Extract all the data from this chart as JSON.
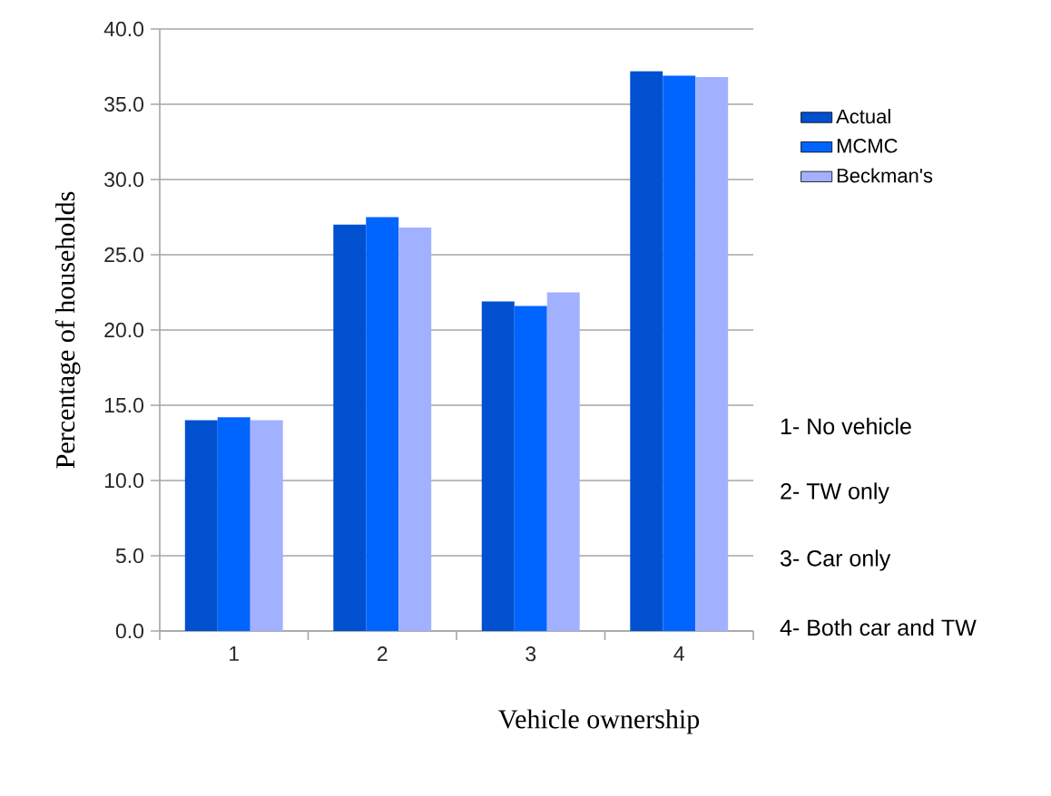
{
  "chart_data": {
    "type": "bar",
    "xlabel": "Vehicle ownership",
    "ylabel": "Percentage of households",
    "categories": [
      "1",
      "2",
      "3",
      "4"
    ],
    "series": [
      {
        "name": "Actual",
        "color": "#0050d0",
        "values": [
          14.0,
          27.0,
          21.9,
          37.2
        ]
      },
      {
        "name": "MCMC",
        "color": "#0064ff",
        "values": [
          14.2,
          27.5,
          21.6,
          36.9
        ]
      },
      {
        "name": "Beckman's",
        "color": "#a2b1ff",
        "values": [
          14.0,
          26.8,
          22.5,
          36.8
        ]
      }
    ],
    "ylim": [
      0,
      40
    ],
    "yticks": [
      {
        "value": 0,
        "label": "0.0"
      },
      {
        "value": 5,
        "label": "5.0"
      },
      {
        "value": 10,
        "label": "10.0"
      },
      {
        "value": 15,
        "label": "15.0"
      },
      {
        "value": 20,
        "label": "20.0"
      },
      {
        "value": 25,
        "label": "25.0"
      },
      {
        "value": 30,
        "label": "30.0"
      },
      {
        "value": 35,
        "label": "35.0"
      },
      {
        "value": 40,
        "label": "40.0"
      }
    ],
    "grid": "y",
    "legend": "right",
    "annotations": [
      "1- No vehicle",
      "2- TW only",
      "3- Car only",
      "4- Both car and TW"
    ]
  }
}
